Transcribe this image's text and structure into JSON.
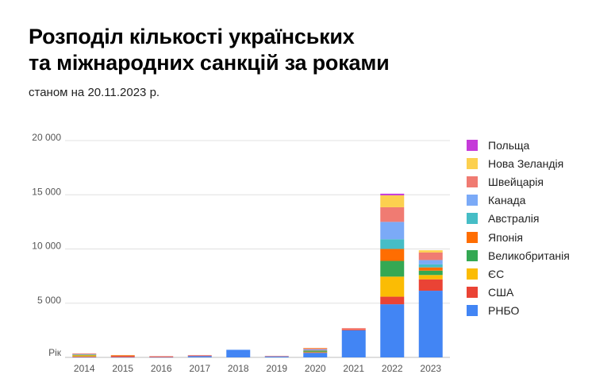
{
  "title_line1": "Розподіл кількості українських",
  "title_line2": "та міжнародних санкцій за роками",
  "subtitle": "станом на 20.11.2023 р.",
  "chart_data": {
    "type": "bar",
    "stacked": true,
    "title": "Розподіл кількості українських та міжнародних санкцій за роками",
    "subtitle": "станом на 20.11.2023 р.",
    "xlabel": "Рік",
    "ylabel": "",
    "ylim": [
      0,
      20000
    ],
    "yticks": [
      0,
      5000,
      10000,
      15000,
      20000
    ],
    "ytick_labels": [
      "Рік",
      "5 000",
      "10 000",
      "15 000",
      "20 000"
    ],
    "grid": true,
    "legend_position": "right",
    "categories": [
      "2014",
      "2015",
      "2016",
      "2017",
      "2018",
      "2019",
      "2020",
      "2021",
      "2022",
      "2023"
    ],
    "series": [
      {
        "name": "РНБО",
        "color": "#4285f4",
        "values": [
          30,
          20,
          20,
          120,
          700,
          100,
          420,
          2500,
          4900,
          6150
        ]
      },
      {
        "name": "США",
        "color": "#ea4335",
        "values": [
          60,
          120,
          80,
          50,
          0,
          20,
          60,
          70,
          700,
          1050
        ]
      },
      {
        "name": "ЄС",
        "color": "#fbbc04",
        "values": [
          100,
          40,
          0,
          0,
          0,
          0,
          20,
          0,
          1850,
          400
        ]
      },
      {
        "name": "Великобританія",
        "color": "#34a853",
        "values": [
          40,
          0,
          0,
          0,
          0,
          0,
          80,
          0,
          1450,
          400
        ]
      },
      {
        "name": "Японія",
        "color": "#ff6d01",
        "values": [
          20,
          0,
          0,
          0,
          0,
          0,
          40,
          0,
          1100,
          300
        ]
      },
      {
        "name": "Австралія",
        "color": "#46bdc6",
        "values": [
          20,
          0,
          0,
          0,
          0,
          0,
          40,
          0,
          900,
          280
        ]
      },
      {
        "name": "Канада",
        "color": "#7baaf7",
        "values": [
          40,
          0,
          0,
          0,
          0,
          0,
          80,
          0,
          1600,
          400
        ]
      },
      {
        "name": "Швейцарія",
        "color": "#f07b72",
        "values": [
          60,
          40,
          0,
          40,
          0,
          0,
          120,
          130,
          1350,
          700
        ]
      },
      {
        "name": "Нова Зеландія",
        "color": "#fcd04f",
        "values": [
          0,
          0,
          0,
          0,
          0,
          0,
          20,
          0,
          1100,
          200
        ]
      },
      {
        "name": "Польща",
        "color": "#c53bd9",
        "values": [
          0,
          0,
          0,
          0,
          0,
          0,
          0,
          0,
          150,
          0
        ]
      }
    ]
  }
}
